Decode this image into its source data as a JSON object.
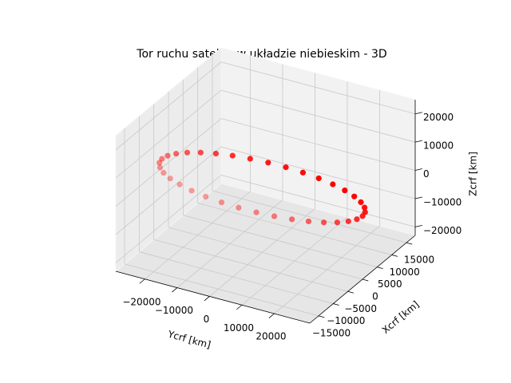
{
  "chart_data": {
    "type": "scatter3d",
    "title": "Tor ruchu satelity w układzie niebieskim - 3D",
    "xlabel": "Xcrf [km]",
    "ylabel": "Ycrf [km]",
    "zlabel": "Zcrf [km]",
    "color": "#ff0000",
    "xlim": [
      -18000,
      18000
    ],
    "ylim": [
      -29000,
      31000
    ],
    "zlim": [
      -23000,
      25000
    ],
    "xticks": [
      {
        "value": -15000,
        "label": "−15000"
      },
      {
        "value": -10000,
        "label": "−10000"
      },
      {
        "value": -5000,
        "label": "−5000"
      },
      0,
      5000,
      10000,
      15000
    ],
    "yticks": [
      {
        "value": -20000,
        "label": "−20000"
      },
      {
        "value": -10000,
        "label": "−10000"
      },
      0,
      10000,
      20000
    ],
    "zticks": [
      {
        "value": -20000,
        "label": "−20000"
      },
      {
        "value": -10000,
        "label": "−10000"
      },
      0,
      10000,
      20000
    ],
    "grid": true,
    "x": [
      -6660,
      -5650,
      -4471,
      -3153,
      -1739,
      -276,
      1199,
      2638,
      3993,
      5230,
      6311,
      7194,
      7859,
      8288,
      8465,
      8383,
      8049,
      7470,
      6660,
      5650,
      4471,
      3153,
      1739,
      276,
      -1199,
      -2638,
      -3993,
      -5230,
      -6311,
      -7194,
      -7859,
      -8288,
      -8465,
      -8383,
      -8049,
      -7470
    ],
    "y": [
      -25600,
      -25390,
      -24406,
      -22670,
      -20253,
      -17227,
      -13666,
      -9695,
      -5439,
      -1000,
      3469,
      7815,
      11934,
      15695,
      18967,
      21670,
      23722,
      25042,
      25600,
      25390,
      24406,
      22670,
      20253,
      17227,
      13666,
      9695,
      5439,
      1000,
      -3469,
      -7815,
      -11934,
      -15695,
      -18967,
      -21670,
      -23722,
      -25042
    ],
    "z": [
      5000,
      2315,
      -430,
      -3170,
      -5815,
      -8275,
      -10490,
      -12390,
      -13905,
      -15000,
      -15645,
      -15810,
      -15490,
      -14705,
      -13475,
      -11830,
      -9830,
      -7535,
      -5000,
      -2315,
      430,
      3170,
      5815,
      8275,
      10490,
      12390,
      13905,
      15000,
      15645,
      15810,
      15490,
      14705,
      13475,
      11830,
      9830,
      7535
    ]
  }
}
